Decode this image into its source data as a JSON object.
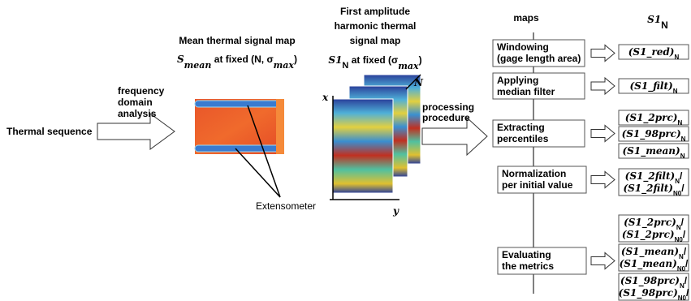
{
  "input": {
    "label": "Thermal sequence"
  },
  "transform": {
    "label": [
      "frequency",
      "domain",
      "analysis"
    ]
  },
  "mean_map": {
    "title": "Mean thermal signal map",
    "subtitle": [
      {
        "text": "S",
        "italic": true
      },
      {
        "text": "mean",
        "sub": true,
        "italic": true
      },
      {
        "text": " at fixed (N, σ"
      },
      {
        "text": "max",
        "sub": true,
        "italic": true
      },
      {
        "text": ")"
      }
    ],
    "annotation": "Extensometer"
  },
  "harmonic_map": {
    "title": [
      "First amplitude",
      "harmonic thermal",
      "signal map"
    ],
    "subtitle": [
      {
        "text": "S1",
        "italic": true
      },
      {
        "text": "N",
        "sub": true
      },
      {
        "text": " at fixed (σ"
      },
      {
        "text": "max",
        "sub": true,
        "italic": true
      },
      {
        "text": ")"
      }
    ],
    "axes": {
      "x": "x",
      "y": "y",
      "n": "N"
    }
  },
  "processing": {
    "label": [
      "processing",
      "procedure"
    ]
  },
  "columns": {
    "steps": "maps",
    "outputs": [
      {
        "text": "S1",
        "italic": true
      },
      {
        "text": "N",
        "sub": true
      }
    ]
  },
  "steps": [
    {
      "label": [
        "Windowing",
        "(gage length area)"
      ]
    },
    {
      "label": [
        "Applying",
        "median filter"
      ]
    },
    {
      "label": [
        "Extracting",
        "percentiles"
      ]
    },
    {
      "label": [
        "Normalization",
        "per initial value"
      ]
    },
    {
      "label": [
        "Evaluating",
        "the metrics"
      ]
    }
  ],
  "outputs": [
    [
      [
        {
          "text": "(S1_red)",
          "italic": true
        },
        {
          "text": "N",
          "sub": true
        }
      ]
    ],
    [
      [
        {
          "text": "(S1_filt)",
          "italic": true
        },
        {
          "text": "N",
          "sub": true
        }
      ]
    ],
    [
      [
        {
          "text": "(S1_2prc)",
          "italic": true
        },
        {
          "text": "N",
          "sub": true
        }
      ]
    ],
    [
      [
        {
          "text": "(S1_98prc)",
          "italic": true
        },
        {
          "text": "N",
          "sub": true
        }
      ]
    ],
    [
      [
        {
          "text": "(S1_mean)",
          "italic": true
        },
        {
          "text": "N",
          "sub": true
        }
      ]
    ],
    [
      [
        {
          "text": "(S1_2filt)",
          "italic": true
        },
        {
          "text": "N",
          "sub": true
        },
        {
          "text": "/"
        }
      ],
      [
        {
          "text": "(S1_2filt)",
          "italic": true
        },
        {
          "text": "N0",
          "sub": true
        },
        {
          "text": "/"
        }
      ]
    ],
    [
      [
        {
          "text": "(S1_2prc)",
          "italic": true
        },
        {
          "text": "N",
          "sub": true
        },
        {
          "text": "/"
        }
      ],
      [
        {
          "text": "(S1_2prc)",
          "italic": true
        },
        {
          "text": "N0",
          "sub": true
        },
        {
          "text": "/"
        }
      ]
    ],
    [
      [
        {
          "text": "(S1_mean)",
          "italic": true
        },
        {
          "text": "N",
          "sub": true
        },
        {
          "text": "/"
        }
      ],
      [
        {
          "text": "(S1_mean)",
          "italic": true
        },
        {
          "text": "N0",
          "sub": true
        },
        {
          "text": "/"
        }
      ]
    ],
    [
      [
        {
          "text": "(S1_98prc)",
          "italic": true
        },
        {
          "text": "N",
          "sub": true
        },
        {
          "text": "/"
        }
      ],
      [
        {
          "text": "(S1_98prc)",
          "italic": true
        },
        {
          "text": "N0",
          "sub": true
        },
        {
          "text": "/"
        }
      ]
    ]
  ]
}
